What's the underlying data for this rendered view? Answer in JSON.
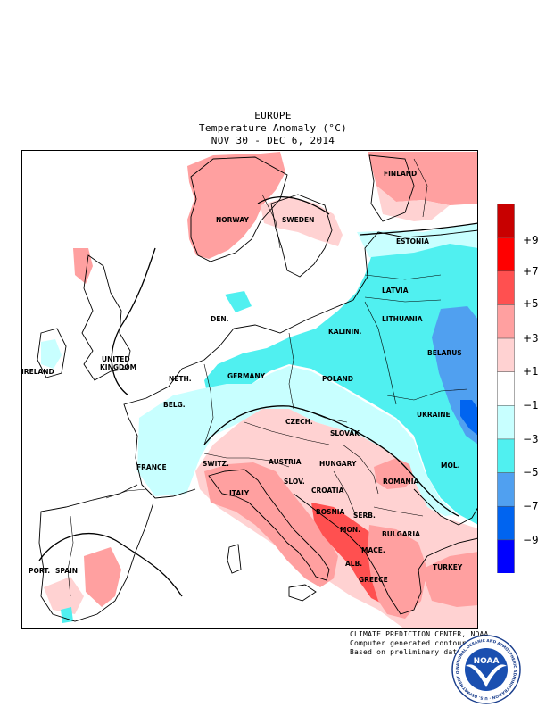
{
  "title": {
    "region": "EUROPE",
    "variable": "Temperature Anomaly (°C)",
    "period": "NOV 30 - DEC  6, 2014"
  },
  "countries": [
    {
      "key": "finland",
      "label": "FINLAND"
    },
    {
      "key": "norway",
      "label": "NORWAY"
    },
    {
      "key": "sweden",
      "label": "SWEDEN"
    },
    {
      "key": "estonia",
      "label": "ESTONIA"
    },
    {
      "key": "latvia",
      "label": "LATVIA"
    },
    {
      "key": "lithuania",
      "label": "LITHUANIA"
    },
    {
      "key": "kalinin",
      "label": "KALININ."
    },
    {
      "key": "den",
      "label": "DEN."
    },
    {
      "key": "belarus",
      "label": "BELARUS"
    },
    {
      "key": "uk1",
      "label": "UNITED"
    },
    {
      "key": "uk2",
      "label": "KINGDOM"
    },
    {
      "key": "ireland",
      "label": "IRELAND"
    },
    {
      "key": "neth",
      "label": "NETH."
    },
    {
      "key": "germany",
      "label": "GERMANY"
    },
    {
      "key": "poland",
      "label": "POLAND"
    },
    {
      "key": "belg",
      "label": "BELG."
    },
    {
      "key": "czech",
      "label": "CZECH."
    },
    {
      "key": "ukraine",
      "label": "UKRAINE"
    },
    {
      "key": "slovak",
      "label": "SLOVAK"
    },
    {
      "key": "france",
      "label": "FRANCE"
    },
    {
      "key": "switz",
      "label": "SWITZ."
    },
    {
      "key": "austria",
      "label": "AUSTRIA"
    },
    {
      "key": "hungary",
      "label": "HUNGARY"
    },
    {
      "key": "mol",
      "label": "MOL."
    },
    {
      "key": "italy",
      "label": "ITALY"
    },
    {
      "key": "slov",
      "label": "SLOV."
    },
    {
      "key": "croatia",
      "label": "CROATIA"
    },
    {
      "key": "romania",
      "label": "ROMANIA"
    },
    {
      "key": "bosnia",
      "label": "BOSNIA"
    },
    {
      "key": "serb",
      "label": "SERB."
    },
    {
      "key": "mon",
      "label": "MON."
    },
    {
      "key": "bulgaria",
      "label": "BULGARIA"
    },
    {
      "key": "port",
      "label": "PORT."
    },
    {
      "key": "spain",
      "label": "SPAIN"
    },
    {
      "key": "mace",
      "label": "MACE."
    },
    {
      "key": "alb",
      "label": "ALB."
    },
    {
      "key": "greece",
      "label": "GREECE"
    },
    {
      "key": "turkey",
      "label": "TURKEY"
    }
  ],
  "legend": {
    "labels": [
      "+9",
      "+7",
      "+5",
      "+3",
      "+1",
      "−1",
      "−3",
      "−5",
      "−7",
      "−9"
    ],
    "colors": [
      "#c80000",
      "#ff0000",
      "#ff5050",
      "#ffa0a0",
      "#ffd2d2",
      "#ffffff",
      "#c8ffff",
      "#50f0f0",
      "#50a0f0",
      "#0064f0",
      "#0000ff"
    ]
  },
  "colors": {
    "warm_light": "#ffd2d2",
    "warm_mid": "#ffa0a0",
    "warm_strong": "#ff5050",
    "cold_light": "#c8ffff",
    "cold_mid": "#50f0f0",
    "cold_strong": "#50a0f0",
    "cold_deep": "#0064f0"
  },
  "credits": {
    "line1": "CLIMATE PREDICTION CENTER, NOAA",
    "line2": "Computer generated contours",
    "line3": "Based on preliminary data"
  },
  "logo": {
    "ring_text": "NATIONAL OCEANIC AND ATMOSPHERIC ADMINISTRATION · U.S. DEPARTMENT OF COMMERCE",
    "center": "NOAA"
  }
}
